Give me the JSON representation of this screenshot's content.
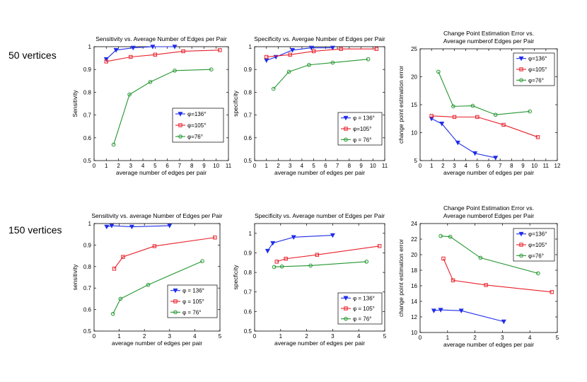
{
  "row_labels": [
    "50 vertices",
    "150 vertices"
  ],
  "colors": {
    "blue": "#1f2de8",
    "red": "#e8202a",
    "green": "#23962f"
  },
  "chart_data": [
    {
      "type": "line",
      "title": [
        "Sensitivity vs. Average Number of Edges per Pair"
      ],
      "xlabel": "average number of edges per pair",
      "ylabel": "Sensitivity",
      "xlim": [
        0,
        11
      ],
      "ylim": [
        0.5,
        1.0
      ],
      "xticks": [
        0,
        1,
        2,
        3,
        4,
        5,
        6,
        7,
        8,
        9,
        10,
        11
      ],
      "xtick_labels": [
        "0",
        "1",
        "2",
        "3",
        "4",
        "5",
        "6",
        "7",
        "8",
        "9",
        "10",
        "11"
      ],
      "yticks": [
        0.5,
        0.6,
        0.7,
        0.8,
        0.9,
        1.0
      ],
      "ytick_labels": [
        "0.5",
        "0.6",
        "0.7",
        "0.8",
        "0.9",
        "1"
      ],
      "legend_position": "center-right",
      "series": [
        {
          "name": "φ=136°",
          "color": "#1f2de8",
          "marker": "triangle-down",
          "x": [
            1.0,
            1.8,
            3.2,
            4.8,
            6.6
          ],
          "y": [
            0.945,
            0.985,
            0.995,
            1.0,
            1.0
          ]
        },
        {
          "name": "φ=105°",
          "color": "#e8202a",
          "marker": "square",
          "x": [
            1.0,
            3.0,
            5.0,
            7.3,
            10.3
          ],
          "y": [
            0.935,
            0.955,
            0.965,
            0.98,
            0.985
          ]
        },
        {
          "name": "φ=76°",
          "color": "#23962f",
          "marker": "circle",
          "x": [
            1.6,
            2.9,
            4.6,
            6.6,
            9.6
          ],
          "y": [
            0.57,
            0.79,
            0.845,
            0.895,
            0.9
          ]
        }
      ]
    },
    {
      "type": "line",
      "title": [
        "Specificity vs. Avergae Number of Edges per Pair"
      ],
      "xlabel": "average number of edges per pair",
      "ylabel": "specificity",
      "xlim": [
        0,
        11
      ],
      "ylim": [
        0.5,
        1.0
      ],
      "xticks": [
        0,
        1,
        2,
        3,
        4,
        5,
        6,
        7,
        8,
        9,
        10,
        11
      ],
      "xtick_labels": [
        "0",
        "1",
        "2",
        "3",
        "4",
        "5",
        "6",
        "7",
        "8",
        "9",
        "10",
        "11"
      ],
      "yticks": [
        0.5,
        0.6,
        0.7,
        0.8,
        0.9,
        1.0
      ],
      "ytick_labels": [
        "0.5",
        "0.6",
        "0.7",
        "0.8",
        "0.9",
        "1"
      ],
      "legend_position": "center-right",
      "series": [
        {
          "name": "φ = 136°",
          "color": "#1f2de8",
          "marker": "triangle-down",
          "x": [
            1.0,
            1.8,
            3.2,
            4.8,
            6.6
          ],
          "y": [
            0.94,
            0.955,
            0.985,
            0.995,
            0.995
          ]
        },
        {
          "name": "φ=105°",
          "color": "#e8202a",
          "marker": "square",
          "x": [
            1.0,
            3.0,
            5.0,
            7.3,
            10.3
          ],
          "y": [
            0.955,
            0.965,
            0.98,
            0.99,
            0.99
          ]
        },
        {
          "name": "φ = 76°",
          "color": "#23962f",
          "marker": "circle",
          "x": [
            1.6,
            2.9,
            4.6,
            6.6,
            9.6
          ],
          "y": [
            0.815,
            0.89,
            0.92,
            0.93,
            0.945
          ]
        }
      ]
    },
    {
      "type": "line",
      "title": [
        "Change Point Estimation Error vs.",
        "Average numberof Edges per Pair"
      ],
      "xlabel": "average number of edges per pair",
      "ylabel": "change point estimation error",
      "xlim": [
        0,
        12
      ],
      "ylim": [
        5,
        25
      ],
      "xticks": [
        0,
        1,
        2,
        3,
        4,
        5,
        6,
        7,
        8,
        9,
        10,
        11,
        12
      ],
      "xtick_labels": [
        "0",
        "1",
        "2",
        "3",
        "4",
        "5",
        "6",
        "7",
        "8",
        "9",
        "10",
        "11",
        "12"
      ],
      "yticks": [
        5,
        10,
        15,
        20,
        25
      ],
      "ytick_labels": [
        "5",
        "10",
        "15",
        "20",
        "25"
      ],
      "legend_position": "top-right",
      "series": [
        {
          "name": "φ=136°",
          "color": "#1f2de8",
          "marker": "triangle-down",
          "x": [
            1.0,
            1.9,
            3.3,
            4.8,
            6.6
          ],
          "y": [
            12.5,
            11.6,
            8.2,
            6.3,
            5.5
          ]
        },
        {
          "name": "φ=105°",
          "color": "#e8202a",
          "marker": "square",
          "x": [
            1.0,
            3.0,
            5.0,
            7.3,
            10.3
          ],
          "y": [
            13.0,
            12.8,
            12.8,
            11.4,
            9.2
          ]
        },
        {
          "name": "φ=76°",
          "color": "#23962f",
          "marker": "circle",
          "x": [
            1.6,
            2.9,
            4.6,
            6.6,
            9.6
          ],
          "y": [
            20.9,
            14.7,
            14.8,
            13.2,
            13.8
          ]
        }
      ]
    },
    {
      "type": "line",
      "title": [
        "Sensitivity vs. average Number of Edges per Pair"
      ],
      "xlabel": "average number of edges per pair",
      "ylabel": "sensitivity",
      "xlim": [
        0,
        5
      ],
      "ylim": [
        0.5,
        1.0
      ],
      "xticks": [
        0,
        1,
        2,
        3,
        4,
        5
      ],
      "xtick_labels": [
        "0",
        "1",
        "2",
        "3",
        "4",
        "5"
      ],
      "yticks": [
        0.5,
        0.6,
        0.7,
        0.8,
        0.9,
        1.0
      ],
      "ytick_labels": [
        "0.5",
        "0.6",
        "0.7",
        "0.8",
        "0.9",
        "1"
      ],
      "legend_position": "bottom-right",
      "series": [
        {
          "name": "φ = 136°",
          "color": "#1f2de8",
          "marker": "triangle-down",
          "x": [
            0.5,
            0.7,
            1.5,
            3.0
          ],
          "y": [
            0.985,
            0.99,
            0.985,
            0.99
          ]
        },
        {
          "name": "φ = 105°",
          "color": "#e8202a",
          "marker": "square",
          "x": [
            0.8,
            1.15,
            2.4,
            4.8
          ],
          "y": [
            0.79,
            0.845,
            0.895,
            0.935
          ]
        },
        {
          "name": "φ = 76°",
          "color": "#23962f",
          "marker": "circle",
          "x": [
            0.75,
            1.05,
            2.15,
            4.3
          ],
          "y": [
            0.58,
            0.65,
            0.715,
            0.825
          ]
        }
      ]
    },
    {
      "type": "line",
      "title": [
        "Specificity vs. Average number of Edges per Pair"
      ],
      "xlabel": "average number of edges per pair",
      "ylabel": "specficity",
      "xlim": [
        0,
        5
      ],
      "ylim": [
        0.5,
        1.05
      ],
      "xticks": [
        0,
        1,
        2,
        3,
        4,
        5
      ],
      "xtick_labels": [
        "0",
        "1",
        "2",
        "3",
        "4",
        "5"
      ],
      "yticks": [
        0.5,
        0.6,
        0.7,
        0.8,
        0.9,
        1.0
      ],
      "ytick_labels": [
        "0.5",
        "0.6",
        "0.7",
        "0.8",
        "0.9",
        "1"
      ],
      "legend_position": "bottom-right",
      "series": [
        {
          "name": "φ = 136°",
          "color": "#1f2de8",
          "marker": "triangle-down",
          "x": [
            0.5,
            0.7,
            1.5,
            3.0
          ],
          "y": [
            0.91,
            0.95,
            0.98,
            0.99
          ]
        },
        {
          "name": "φ = 105°",
          "color": "#e8202a",
          "marker": "square",
          "x": [
            0.85,
            1.2,
            2.4,
            4.8
          ],
          "y": [
            0.855,
            0.87,
            0.89,
            0.935
          ]
        },
        {
          "name": "φ = 76°",
          "color": "#23962f",
          "marker": "circle",
          "x": [
            0.75,
            1.05,
            2.15,
            4.3
          ],
          "y": [
            0.828,
            0.83,
            0.835,
            0.855
          ]
        }
      ]
    },
    {
      "type": "line",
      "title": [
        "Change Point Estimation Error vs.",
        "Average numberof Edges per Pair"
      ],
      "xlabel": "average number of edges per pair",
      "ylabel": "change point estimation error",
      "xlim": [
        0,
        5
      ],
      "ylim": [
        10,
        24
      ],
      "xticks": [
        0,
        1,
        2,
        3,
        4,
        5
      ],
      "xtick_labels": [
        "0",
        "1",
        "2",
        "3",
        "4",
        "5"
      ],
      "yticks": [
        10,
        12,
        14,
        16,
        18,
        20,
        22,
        24
      ],
      "ytick_labels": [
        "10",
        "12",
        "14",
        "16",
        "18",
        "20",
        "22",
        "24"
      ],
      "legend_position": "top-right",
      "series": [
        {
          "name": "φ=136°",
          "color": "#1f2de8",
          "marker": "triangle-down",
          "x": [
            0.5,
            0.75,
            1.5,
            3.05
          ],
          "y": [
            12.8,
            12.9,
            12.8,
            11.4
          ]
        },
        {
          "name": "φ=105°",
          "color": "#e8202a",
          "marker": "square",
          "x": [
            0.85,
            1.2,
            2.4,
            4.8
          ],
          "y": [
            19.5,
            16.7,
            16.1,
            15.2
          ]
        },
        {
          "name": "φ=76°",
          "color": "#23962f",
          "marker": "circle",
          "x": [
            0.75,
            1.1,
            2.2,
            4.3
          ],
          "y": [
            22.4,
            22.3,
            19.6,
            17.6
          ]
        }
      ]
    }
  ]
}
